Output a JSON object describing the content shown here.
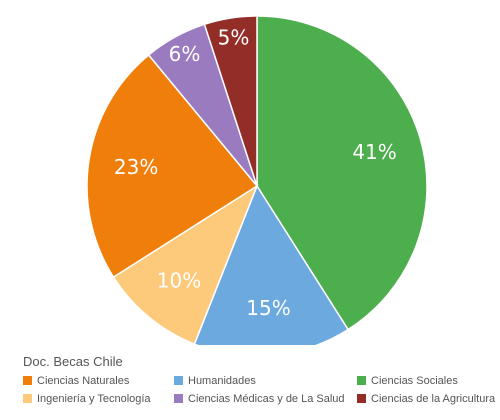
{
  "chart_data": {
    "type": "pie",
    "legend_title": "Doc. Becas Chile",
    "legend_position": "bottom",
    "slices": [
      {
        "name": "Ciencias Sociales",
        "value": 41,
        "label": "41%",
        "color": "#4cae4c"
      },
      {
        "name": "Humanidades",
        "value": 15,
        "label": "15%",
        "color": "#6ba9df"
      },
      {
        "name": "Ingeniería y Tecnología",
        "value": 10,
        "label": "10%",
        "color": "#fdc97b"
      },
      {
        "name": "Ciencias Naturales",
        "value": 23,
        "label": "23%",
        "color": "#ef7e0b"
      },
      {
        "name": "Ciencias Médicas y de La Salud",
        "value": 6,
        "label": "6%",
        "color": "#9a7bbf"
      },
      {
        "name": "Ciencias de la Agricultura",
        "value": 5,
        "label": "5%",
        "color": "#922d27"
      }
    ],
    "legend_order": [
      "Ciencias Naturales",
      "Humanidades",
      "Ciencias Sociales",
      "Ingeniería y Tecnología",
      "Ciencias Médicas y de La Salud",
      "Ciencias de la Agricultura"
    ]
  }
}
